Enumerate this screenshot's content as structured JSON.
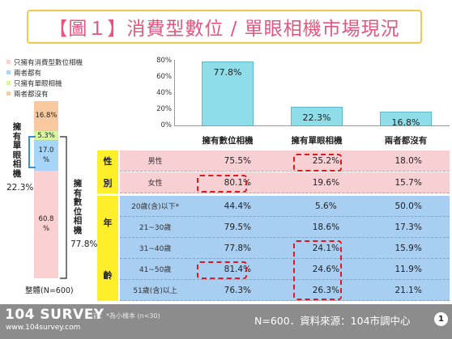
{
  "title": "【圖１】消費型數位 / 單眼相機市場現況",
  "colors": {
    "title_border": "#f2c84b",
    "title_text": "#e4567f",
    "bar_fill": "#8fdde8",
    "seg_consumer_only": "#fbd0d0",
    "seg_both": "#a6d5f7",
    "seg_slr_only": "#d8f5a2",
    "seg_neither": "#f8c89f",
    "gender_row": "#f7d0d4",
    "age_row": "#a8cef1",
    "group_label": "#ffef2a",
    "highlight": "#e0191f",
    "footer": "#8c8c8c"
  },
  "legend": [
    {
      "label": "只擁有消費型數位相機",
      "color": "#fbd0d0"
    },
    {
      "label": "兩者都有",
      "color": "#a6d5f7"
    },
    {
      "label": "只擁有單眼相機",
      "color": "#d8f5a2"
    },
    {
      "label": "兩者都沒有",
      "color": "#f8c89f"
    }
  ],
  "stack_labels": [
    "60.8\n%",
    "17.0\n%",
    "5.3%",
    "16.8%"
  ],
  "side_labels": {
    "slr_owner": "擁有單眼相機",
    "slr_pct": "22.3%",
    "digital_owner": "擁有數位相機",
    "digital_pct": "77.8%",
    "total": "整體(N=600)"
  },
  "chart_data": [
    {
      "type": "bar",
      "categories": [
        "擁有數位相機",
        "擁有單眼相機",
        "兩者都沒有"
      ],
      "values": [
        77.8,
        22.3,
        16.8
      ],
      "value_labels": [
        "77.8%",
        "22.3%",
        "16.8%"
      ],
      "yticks": [
        "80%",
        "60%",
        "40%",
        "20%",
        "0%"
      ],
      "ylim": [
        0,
        80
      ],
      "grid": false
    },
    {
      "type": "bar",
      "stacked": true,
      "categories": [
        "整體(N=600)"
      ],
      "series": [
        {
          "name": "只擁有消費型數位相機",
          "values": [
            60.8
          ]
        },
        {
          "name": "兩者都有",
          "values": [
            17.0
          ]
        },
        {
          "name": "只擁有單眼相機",
          "values": [
            5.3
          ]
        },
        {
          "name": "兩者都沒有",
          "values": [
            16.8
          ]
        }
      ]
    },
    {
      "type": "table",
      "columns": [
        "擁有數位相機",
        "擁有單眼相機",
        "兩者都沒有"
      ],
      "groups": [
        {
          "name": "性別",
          "chars": [
            "性",
            "別"
          ],
          "rows": [
            {
              "label": "男性",
              "values": [
                "75.5%",
                "25.2%",
                "18.0%"
              ]
            },
            {
              "label": "女性",
              "values": [
                "80.1%",
                "19.6%",
                "15.7%"
              ]
            }
          ]
        },
        {
          "name": "年齡",
          "chars": [
            "年",
            "齡"
          ],
          "rows": [
            {
              "label": "20歲(含)以下*",
              "values": [
                "44.4%",
                "5.6%",
                "50.0%"
              ]
            },
            {
              "label": "21~30歲",
              "values": [
                "79.5%",
                "18.6%",
                "17.3%"
              ]
            },
            {
              "label": "31~40歲",
              "values": [
                "77.8%",
                "24.1%",
                "15.9%"
              ]
            },
            {
              "label": "41~50歲",
              "values": [
                "81.4%",
                "24.6%",
                "11.9%"
              ]
            },
            {
              "label": "51歲(含)以上",
              "values": [
                "76.3%",
                "26.3%",
                "21.1%"
              ]
            }
          ]
        }
      ]
    }
  ],
  "footer": {
    "brand": "104 SURVEY",
    "url": "www.104survey.com",
    "note": "註：*為小樣本 (n<30)",
    "source": "N=600．資料來源：104市調中心",
    "page": "1"
  }
}
